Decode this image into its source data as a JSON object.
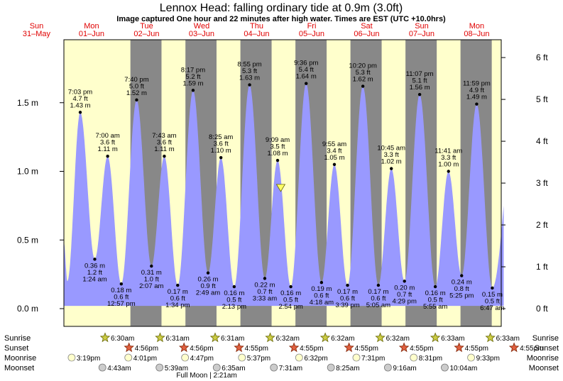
{
  "chart_data": {
    "type": "area",
    "title": "Lennox Head: falling  ordinary tide at 0.9m (3.0ft)",
    "subtitle": "Image captured One hour and 22 minutes after high water. Times are EST (UTC +10.0hrs)",
    "y_left_ticks": [
      "0.0 m",
      "0.5 m",
      "1.0 m",
      "1.5 m"
    ],
    "y_right_ticks": [
      "0 ft",
      "1 ft",
      "2 ft",
      "3 ft",
      "4 ft",
      "5 ft",
      "6 ft"
    ],
    "ylim_m": [
      -0.02,
      2.0
    ],
    "days": [
      {
        "dow": "Sun",
        "date": "31–May"
      },
      {
        "dow": "Mon",
        "date": "01–Jun"
      },
      {
        "dow": "Tue",
        "date": "02–Jun"
      },
      {
        "dow": "Wed",
        "date": "03–Jun"
      },
      {
        "dow": "Thu",
        "date": "04–Jun"
      },
      {
        "dow": "Fri",
        "date": "05–Jun"
      },
      {
        "dow": "Sat",
        "date": "06–Jun"
      },
      {
        "dow": "Sun",
        "date": "07–Jun"
      },
      {
        "dow": "Mon",
        "date": "08–Jun"
      }
    ],
    "tides": [
      {
        "time": "7:03 pm",
        "ft": "4.7 ft",
        "m": 1.43,
        "type": "high",
        "day": 0.794
      },
      {
        "time": "1:24 am",
        "ft": "1.2 ft",
        "m": 0.36,
        "type": "low",
        "day": 1.058
      },
      {
        "time": "7:00 am",
        "ft": "3.6 ft",
        "m": 1.11,
        "type": "high",
        "day": 1.292
      },
      {
        "time": "12:57 pm",
        "ft": "0.6 ft",
        "m": 0.18,
        "type": "low",
        "day": 1.54
      },
      {
        "time": "7:40 pm",
        "ft": "5.0 ft",
        "m": 1.52,
        "type": "high",
        "day": 1.819
      },
      {
        "time": "2:07 am",
        "ft": "1.0 ft",
        "m": 0.31,
        "type": "low",
        "day": 2.088
      },
      {
        "time": "7:43 am",
        "ft": "3.6 ft",
        "m": 1.11,
        "type": "high",
        "day": 2.322
      },
      {
        "time": "1:34 pm",
        "ft": "0.6 ft",
        "m": 0.17,
        "type": "low",
        "day": 2.565
      },
      {
        "time": "8:17 pm",
        "ft": "5.2 ft",
        "m": 1.59,
        "type": "high",
        "day": 2.845
      },
      {
        "time": "2:49 am",
        "ft": "0.9 ft",
        "m": 0.26,
        "type": "low",
        "day": 3.117
      },
      {
        "time": "8:25 am",
        "ft": "3.6 ft",
        "m": 1.1,
        "type": "high",
        "day": 3.351
      },
      {
        "time": "2:13 pm",
        "ft": "0.5 ft",
        "m": 0.16,
        "type": "low",
        "day": 3.592
      },
      {
        "time": "8:55 pm",
        "ft": "5.3 ft",
        "m": 1.63,
        "type": "high",
        "day": 3.872
      },
      {
        "time": "3:33 am",
        "ft": "0.7 ft",
        "m": 0.22,
        "type": "low",
        "day": 4.148
      },
      {
        "time": "9:09 am",
        "ft": "3.5 ft",
        "m": 1.08,
        "type": "high",
        "day": 4.381
      },
      {
        "time": "2:54 pm",
        "ft": "0.5 ft",
        "m": 0.16,
        "type": "low",
        "day": 4.621
      },
      {
        "time": "9:36 pm",
        "ft": "5.4 ft",
        "m": 1.64,
        "type": "high",
        "day": 4.9
      },
      {
        "time": "4:18 am",
        "ft": "0.6 ft",
        "m": 0.19,
        "type": "low",
        "day": 5.179
      },
      {
        "time": "9:55 am",
        "ft": "3.4 ft",
        "m": 1.05,
        "type": "high",
        "day": 5.413
      },
      {
        "time": "3:39 pm",
        "ft": "0.6 ft",
        "m": 0.17,
        "type": "low",
        "day": 5.652
      },
      {
        "time": "10:20 pm",
        "ft": "5.3 ft",
        "m": 1.62,
        "type": "high",
        "day": 5.931
      },
      {
        "time": "5:05 am",
        "ft": "0.6 ft",
        "m": 0.17,
        "type": "low",
        "day": 6.212
      },
      {
        "time": "10:45 am",
        "ft": "3.3 ft",
        "m": 1.02,
        "type": "high",
        "day": 6.448
      },
      {
        "time": "4:29 pm",
        "ft": "0.7 ft",
        "m": 0.2,
        "type": "low",
        "day": 6.687
      },
      {
        "time": "11:07 pm",
        "ft": "5.1 ft",
        "m": 1.56,
        "type": "high",
        "day": 6.963
      },
      {
        "time": "5:55 am",
        "ft": "0.5 ft",
        "m": 0.16,
        "type": "low",
        "day": 7.247
      },
      {
        "time": "11:41 am",
        "ft": "3.3 ft",
        "m": 1.0,
        "type": "high",
        "day": 7.487
      },
      {
        "time": "5:25 pm",
        "ft": "0.8 ft",
        "m": 0.24,
        "type": "low",
        "day": 7.726
      },
      {
        "time": "11:59 pm",
        "ft": "4.9 ft",
        "m": 1.49,
        "type": "high",
        "day": 7.999
      },
      {
        "time": "6:47 am",
        "ft": "0.5 ft",
        "m": 0.15,
        "type": "low",
        "day": 8.283
      }
    ],
    "label_order": [
      "time",
      "ft",
      "m"
    ],
    "current_level": {
      "m": 0.9,
      "day": 4.438
    },
    "colors": {
      "water": "#9999ff",
      "day_bg": "#ffffcc",
      "night_bg": "#888888",
      "dow": "#e00000"
    }
  },
  "almanac": {
    "rows": [
      "Sunrise",
      "Sunset",
      "Moonrise",
      "Moonset"
    ],
    "sunrise": [
      {
        "day": 1.271,
        "time": "6:30am"
      },
      {
        "day": 2.271,
        "time": "6:31am"
      },
      {
        "day": 3.271,
        "time": "6:31am"
      },
      {
        "day": 4.272,
        "time": "6:32am"
      },
      {
        "day": 5.272,
        "time": "6:32am"
      },
      {
        "day": 6.272,
        "time": "6:32am"
      },
      {
        "day": 7.273,
        "time": "6:33am"
      },
      {
        "day": 8.273,
        "time": "6:33am"
      }
    ],
    "sunset": [
      {
        "day": 1.706,
        "time": "4:56pm"
      },
      {
        "day": 2.706,
        "time": "4:56pm"
      },
      {
        "day": 3.705,
        "time": "4:55pm"
      },
      {
        "day": 4.705,
        "time": "4:55pm"
      },
      {
        "day": 5.705,
        "time": "4:55pm"
      },
      {
        "day": 6.705,
        "time": "4:55pm"
      },
      {
        "day": 7.705,
        "time": "4:55pm"
      },
      {
        "day": 8.705,
        "time": "4:55pm"
      }
    ],
    "moonrise": [
      {
        "day": 0.638,
        "time": "3:19pm"
      },
      {
        "day": 1.668,
        "time": "4:01pm"
      },
      {
        "day": 2.699,
        "time": "4:47pm"
      },
      {
        "day": 3.733,
        "time": "5:37pm"
      },
      {
        "day": 4.772,
        "time": "6:32pm"
      },
      {
        "day": 5.813,
        "time": "7:31pm"
      },
      {
        "day": 6.855,
        "time": "8:31pm"
      },
      {
        "day": 7.898,
        "time": "9:33pm"
      }
    ],
    "moonset": [
      {
        "day": 1.197,
        "time": "4:43am"
      },
      {
        "day": 2.235,
        "time": "5:39am"
      },
      {
        "day": 3.275,
        "time": "6:35am"
      },
      {
        "day": 4.313,
        "time": "7:31am"
      },
      {
        "day": 5.351,
        "time": "8:25am"
      },
      {
        "day": 6.386,
        "time": "9:16am"
      },
      {
        "day": 7.419,
        "time": "10:04am"
      }
    ],
    "moon_phase": {
      "day": 3.092,
      "text": "Full Moon | 2:21am"
    }
  }
}
